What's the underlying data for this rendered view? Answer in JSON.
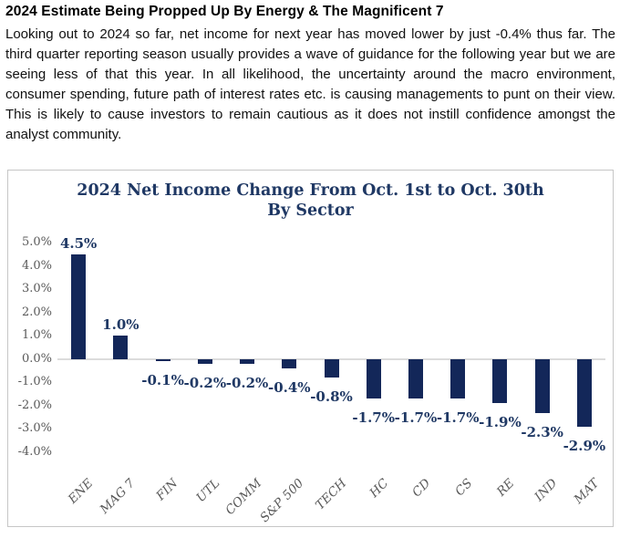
{
  "page": {
    "title": "2024 Estimate Being Propped Up By Energy & The Magnificent 7",
    "body": "Looking out to 2024 so far, net income for next year has moved lower by just -0.4% thus far. The third quarter reporting season usually provides a wave of guidance for the following year but we are seeing less of that this year. In all likelihood, the uncertainty around the macro environment, consumer spending, future path of interest rates etc. is causing managements to punt on their view. This is likely to cause investors to remain cautious as it does not instill confidence amongst the analyst community."
  },
  "chart_data": {
    "type": "bar",
    "title": "2024 Net Income Change From Oct. 1st to Oct. 30th By Sector",
    "title_lines": [
      "2024 Net Income Change From Oct. 1st to Oct. 30th",
      "By Sector"
    ],
    "categories": [
      "ENE",
      "MAG 7",
      "FIN",
      "UTL",
      "COMM",
      "S&P 500",
      "TECH",
      "HC",
      "CD",
      "CS",
      "RE",
      "IND",
      "MAT"
    ],
    "values": [
      4.5,
      1.0,
      -0.1,
      -0.2,
      -0.2,
      -0.4,
      -0.8,
      -1.7,
      -1.7,
      -1.7,
      -1.9,
      -2.3,
      -2.9
    ],
    "labels": [
      "4.5%",
      "1.0%",
      "-0.1%",
      "-0.2%",
      "-0.2%",
      "-0.4%",
      "-0.8%",
      "-1.7%",
      "-1.7%",
      "-1.7%",
      "-1.9%",
      "-2.3%",
      "-2.9%"
    ],
    "y_ticks": [
      "5.0%",
      "4.0%",
      "3.0%",
      "2.0%",
      "1.0%",
      "0.0%",
      "-1.0%",
      "-2.0%",
      "-3.0%",
      "-4.0%"
    ],
    "ylim": [
      -4.0,
      5.0
    ],
    "xlabel": "",
    "ylabel": "",
    "grid": false,
    "legend": "none",
    "colors": {
      "bar": "#132759",
      "data_label": "#1f3864",
      "chart_title": "#1f3864",
      "axis_text": "#595959",
      "zero_line": "#dcdcdc",
      "chart_border": "#c6c6c6"
    }
  }
}
